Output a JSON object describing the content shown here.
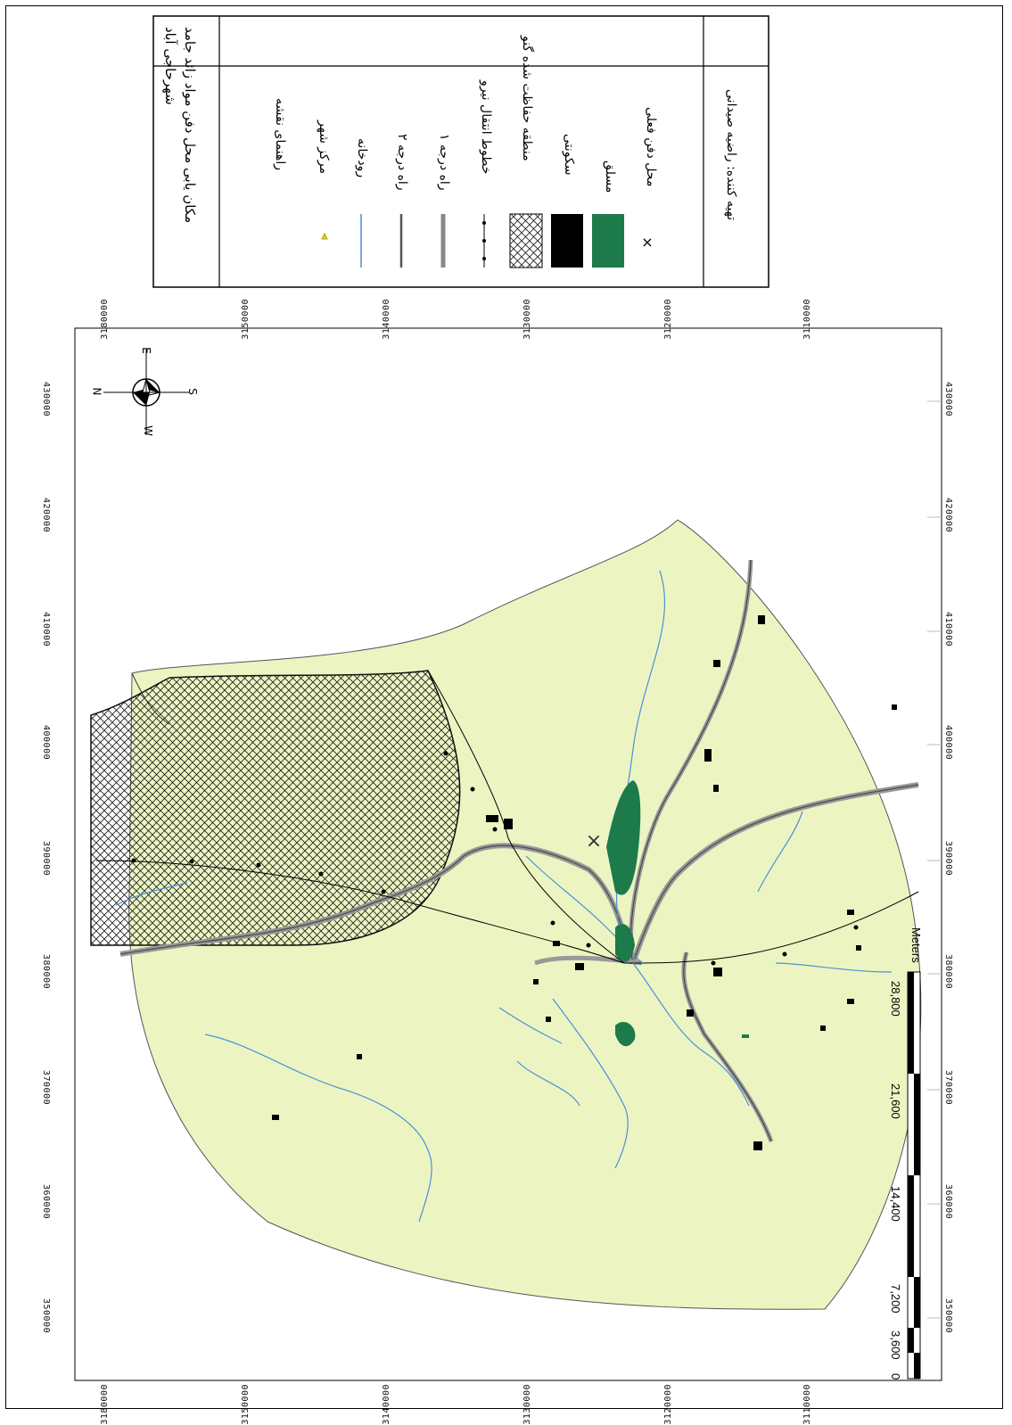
{
  "map": {
    "title_line1": "مکان یابی محل دفن مواد زائد جامد",
    "title_line2": "شهرحاجی آباد",
    "legend_heading": "راهنمای نقشه",
    "legend_items": [
      {
        "symbol": "triangle",
        "label": "مرکز شهر",
        "color": "#e8d800"
      },
      {
        "symbol": "river-line",
        "label": "رودخانه",
        "color": "#4a90d9"
      },
      {
        "symbol": "road2-line",
        "label": "راه درجه ۲",
        "color": "#555555"
      },
      {
        "symbol": "road1-line",
        "label": "راه درجه ۱",
        "color": "#888888"
      },
      {
        "symbol": "powerline",
        "label": "خطوط انتقال نیرو",
        "color": "#000000"
      },
      {
        "symbol": "hatch",
        "label": "منطقه حفاظت شده گنو",
        "color": "#000000"
      },
      {
        "symbol": "black-fill",
        "label": "سکونتی",
        "color": "#000000"
      },
      {
        "symbol": "green-fill",
        "label": "مسلق",
        "color": "#1d7a4a"
      },
      {
        "symbol": "x-mark",
        "label": "محل دفن فعلی",
        "color": "#000000"
      }
    ],
    "credit": "تهیه کننده: راضیه صیدانی",
    "north_arrow": {
      "N": "N",
      "E": "E",
      "S": "S",
      "W": "W"
    },
    "easting_labels": [
      "350000",
      "360000",
      "370000",
      "380000",
      "390000",
      "400000",
      "410000",
      "420000",
      "430000"
    ],
    "northing_labels": [
      "3180000",
      "3150000",
      "3140000",
      "3130000",
      "3120000",
      "3110000"
    ],
    "northing_labels_bottom": [
      "3180000",
      "3150000",
      "3140000",
      "3130000",
      "3120000",
      "3110000"
    ],
    "scale_bar": {
      "ticks": [
        "0",
        "3,600",
        "7,200",
        "14,400",
        "21,600",
        "28,800"
      ],
      "unit": "Meters"
    },
    "colors": {
      "land": "#ecf5c2",
      "hatch": "#222222",
      "river": "#4a90d9",
      "green": "#1d7a4a"
    }
  }
}
